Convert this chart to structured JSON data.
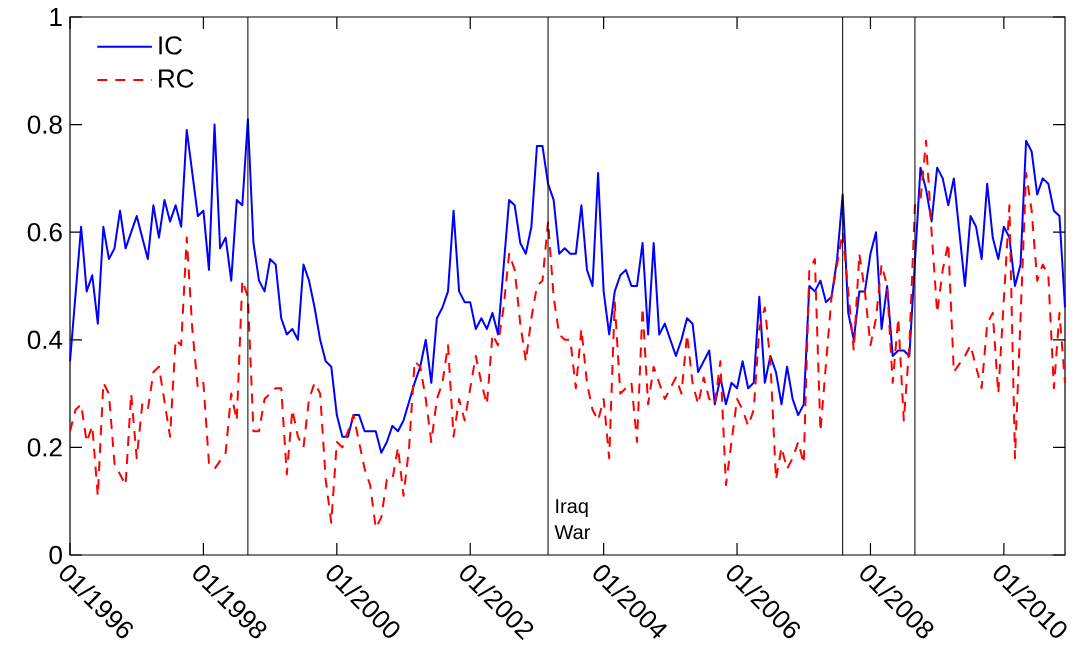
{
  "chart_data": {
    "type": "line",
    "xlim": [
      "1996-01",
      "2010-12"
    ],
    "ylim": [
      0,
      1
    ],
    "xticks": [
      {
        "value": "1996-01",
        "label": "01/1996"
      },
      {
        "value": "1998-01",
        "label": "01/1998"
      },
      {
        "value": "2000-01",
        "label": "01/2000"
      },
      {
        "value": "2002-01",
        "label": "01/2002"
      },
      {
        "value": "2004-01",
        "label": "01/2004"
      },
      {
        "value": "2006-01",
        "label": "01/2006"
      },
      {
        "value": "2008-01",
        "label": "01/2008"
      },
      {
        "value": "2010-01",
        "label": "01/2010"
      }
    ],
    "yticks": [
      0,
      0.2,
      0.4,
      0.6,
      0.8,
      1
    ],
    "legend": "top left",
    "series": [
      {
        "name": "IC",
        "color": "#0000ff",
        "line_style": "solid",
        "x": [
          "1996-01",
          "1996-03",
          "1996-04",
          "1996-05",
          "1996-06",
          "1996-07",
          "1996-08",
          "1996-09",
          "1996-10",
          "1996-11",
          "1997-01",
          "1997-03",
          "1997-04",
          "1997-05",
          "1997-06",
          "1997-07",
          "1997-08",
          "1997-09",
          "1997-10",
          "1997-12",
          "1998-01",
          "1998-02",
          "1998-03",
          "1998-04",
          "1998-05",
          "1998-06",
          "1998-07",
          "1998-08",
          "1998-09",
          "1998-10",
          "1998-11",
          "1998-12",
          "1999-01",
          "1999-02",
          "1999-03",
          "1999-04",
          "1999-05",
          "1999-06",
          "1999-07",
          "1999-08",
          "1999-09",
          "1999-10",
          "1999-11",
          "1999-12",
          "2000-01",
          "2000-02",
          "2000-03",
          "2000-04",
          "2000-05",
          "2000-06",
          "2000-07",
          "2000-08",
          "2000-09",
          "2000-10",
          "2000-11",
          "2000-12",
          "2001-01",
          "2001-03",
          "2001-04",
          "2001-05",
          "2001-06",
          "2001-07",
          "2001-08",
          "2001-09",
          "2001-10",
          "2001-11",
          "2001-12",
          "2002-01",
          "2002-02",
          "2002-03",
          "2002-04",
          "2002-05",
          "2002-06",
          "2002-08",
          "2002-09",
          "2002-10",
          "2002-11",
          "2002-12",
          "2003-01",
          "2003-02",
          "2003-03",
          "2003-04",
          "2003-05",
          "2003-06",
          "2003-07",
          "2003-08",
          "2003-09",
          "2003-10",
          "2003-11",
          "2003-12",
          "2004-01",
          "2004-02",
          "2004-03",
          "2004-04",
          "2004-05",
          "2004-06",
          "2004-07",
          "2004-08",
          "2004-09",
          "2004-10",
          "2004-11",
          "2004-12",
          "2005-01",
          "2005-02",
          "2005-03",
          "2005-04",
          "2005-05",
          "2005-06",
          "2005-07",
          "2005-08",
          "2005-09",
          "2005-10",
          "2005-11",
          "2005-12",
          "2006-01",
          "2006-02",
          "2006-03",
          "2006-04",
          "2006-05",
          "2006-06",
          "2006-07",
          "2006-08",
          "2006-09",
          "2006-10",
          "2006-11",
          "2006-12",
          "2007-01",
          "2007-02",
          "2007-03",
          "2007-04",
          "2007-05",
          "2007-06",
          "2007-07",
          "2007-08",
          "2007-09",
          "2007-10",
          "2007-11",
          "2007-12",
          "2008-01",
          "2008-02",
          "2008-03",
          "2008-04",
          "2008-05",
          "2008-06",
          "2008-07",
          "2008-08",
          "2008-10",
          "2008-11",
          "2008-12",
          "2009-01",
          "2009-02",
          "2009-03",
          "2009-04",
          "2009-05",
          "2009-06",
          "2009-07",
          "2009-08",
          "2009-09",
          "2009-10",
          "2009-11",
          "2009-12",
          "2010-01",
          "2010-02",
          "2010-03",
          "2010-04",
          "2010-05",
          "2010-06",
          "2010-07",
          "2010-08",
          "2010-09",
          "2010-10",
          "2010-11",
          "2010-12"
        ],
        "values": [
          0.36,
          0.61,
          0.49,
          0.52,
          0.43,
          0.61,
          0.55,
          0.57,
          0.64,
          0.57,
          0.63,
          0.55,
          0.65,
          0.59,
          0.66,
          0.62,
          0.65,
          0.61,
          0.79,
          0.63,
          0.64,
          0.53,
          0.8,
          0.57,
          0.59,
          0.51,
          0.66,
          0.65,
          0.81,
          0.58,
          0.51,
          0.49,
          0.55,
          0.54,
          0.44,
          0.41,
          0.42,
          0.4,
          0.54,
          0.51,
          0.46,
          0.4,
          0.36,
          0.35,
          0.26,
          0.22,
          0.22,
          0.26,
          0.26,
          0.23,
          0.23,
          0.23,
          0.19,
          0.21,
          0.24,
          0.23,
          0.25,
          0.32,
          0.35,
          0.4,
          0.32,
          0.44,
          0.46,
          0.49,
          0.64,
          0.49,
          0.47,
          0.47,
          0.42,
          0.44,
          0.42,
          0.45,
          0.41,
          0.66,
          0.65,
          0.58,
          0.56,
          0.61,
          0.76,
          0.76,
          0.69,
          0.66,
          0.56,
          0.57,
          0.56,
          0.56,
          0.65,
          0.53,
          0.5,
          0.71,
          0.49,
          0.41,
          0.49,
          0.52,
          0.53,
          0.5,
          0.5,
          0.58,
          0.41,
          0.58,
          0.41,
          0.43,
          0.4,
          0.37,
          0.4,
          0.44,
          0.43,
          0.34,
          0.36,
          0.38,
          0.28,
          0.33,
          0.28,
          0.32,
          0.31,
          0.36,
          0.31,
          0.32,
          0.48,
          0.32,
          0.37,
          0.34,
          0.28,
          0.35,
          0.29,
          0.26,
          0.28,
          0.5,
          0.49,
          0.51,
          0.47,
          0.48,
          0.55,
          0.67,
          0.45,
          0.4,
          0.49,
          0.49,
          0.56,
          0.6,
          0.42,
          0.5,
          0.37,
          0.38,
          0.38,
          0.37,
          0.72,
          0.68,
          0.62,
          0.72,
          0.7,
          0.65,
          0.7,
          0.6,
          0.5,
          0.63,
          0.61,
          0.55,
          0.69,
          0.59,
          0.55,
          0.61,
          0.59,
          0.5,
          0.54,
          0.77,
          0.75,
          0.67,
          0.7,
          0.69,
          0.64,
          0.63,
          0.46
        ]
      },
      {
        "name": "RC",
        "color": "#ff0000",
        "line_style": "dashed",
        "x": [
          "1996-01",
          "1996-02",
          "1996-03",
          "1996-04",
          "1996-05",
          "1996-06",
          "1996-07",
          "1996-08",
          "1996-09",
          "1996-10",
          "1996-11",
          "1996-12",
          "1997-01",
          "1997-02",
          "1997-03",
          "1997-04",
          "1997-05",
          "1997-07",
          "1997-08",
          "1997-09",
          "1997-10",
          "1997-11",
          "1997-12",
          "1998-01",
          "1998-02",
          "1998-03",
          "1998-05",
          "1998-06",
          "1998-07",
          "1998-08",
          "1998-09",
          "1998-10",
          "1998-11",
          "1998-12",
          "1999-02",
          "1999-03",
          "1999-04",
          "1999-05",
          "1999-06",
          "1999-07",
          "1999-08",
          "1999-09",
          "1999-10",
          "1999-11",
          "1999-12",
          "2000-01",
          "2000-02",
          "2000-04",
          "2000-05",
          "2000-06",
          "2000-07",
          "2000-08",
          "2000-09",
          "2000-10",
          "2000-11",
          "2000-12",
          "2001-01",
          "2001-02",
          "2001-03",
          "2001-04",
          "2001-05",
          "2001-06",
          "2001-07",
          "2001-08",
          "2001-09",
          "2001-10",
          "2001-11",
          "2001-12",
          "2002-01",
          "2002-02",
          "2002-03",
          "2002-04",
          "2002-05",
          "2002-06",
          "2002-07",
          "2002-08",
          "2002-09",
          "2002-10",
          "2002-11",
          "2002-12",
          "2003-01",
          "2003-02",
          "2003-03",
          "2003-04",
          "2003-05",
          "2003-06",
          "2003-07",
          "2003-08",
          "2003-09",
          "2003-10",
          "2003-11",
          "2003-12",
          "2004-01",
          "2004-02",
          "2004-03",
          "2004-04",
          "2004-06",
          "2004-07",
          "2004-08",
          "2004-09",
          "2004-10",
          "2004-12",
          "2005-01",
          "2005-02",
          "2005-03",
          "2005-04",
          "2005-05",
          "2005-06",
          "2005-07",
          "2005-08",
          "2005-09",
          "2005-10",
          "2005-11",
          "2005-12",
          "2006-01",
          "2006-02",
          "2006-03",
          "2006-04",
          "2006-05",
          "2006-06",
          "2006-07",
          "2006-08",
          "2006-09",
          "2006-10",
          "2006-11",
          "2006-12",
          "2007-01",
          "2007-02",
          "2007-03",
          "2007-04",
          "2007-06",
          "2007-07",
          "2007-08",
          "2007-09",
          "2007-10",
          "2007-11",
          "2007-12",
          "2008-01",
          "2008-02",
          "2008-03",
          "2008-04",
          "2008-05",
          "2008-06",
          "2008-07",
          "2008-08",
          "2008-09",
          "2008-10",
          "2008-11",
          "2008-12",
          "2009-01",
          "2009-02",
          "2009-03",
          "2009-04",
          "2009-06",
          "2009-07",
          "2009-09",
          "2009-10",
          "2009-11",
          "2009-12",
          "2010-02",
          "2010-03",
          "2010-04",
          "2010-05",
          "2010-06",
          "2010-07",
          "2010-08",
          "2010-09",
          "2010-10",
          "2010-11",
          "2010-12"
        ],
        "values": [
          0.23,
          0.27,
          0.28,
          0.21,
          0.24,
          0.11,
          0.32,
          0.3,
          0.17,
          0.15,
          0.13,
          0.3,
          0.18,
          0.28,
          0.27,
          0.34,
          0.35,
          0.22,
          0.4,
          0.39,
          0.59,
          0.42,
          0.31,
          0.32,
          0.17,
          0.16,
          0.19,
          0.3,
          0.25,
          0.51,
          0.48,
          0.23,
          0.23,
          0.29,
          0.31,
          0.31,
          0.15,
          0.27,
          0.22,
          0.2,
          0.29,
          0.32,
          0.3,
          0.14,
          0.06,
          0.21,
          0.2,
          0.26,
          0.21,
          0.16,
          0.13,
          0.05,
          0.07,
          0.14,
          0.14,
          0.2,
          0.11,
          0.2,
          0.36,
          0.35,
          0.29,
          0.21,
          0.29,
          0.32,
          0.39,
          0.22,
          0.29,
          0.25,
          0.31,
          0.37,
          0.32,
          0.28,
          0.41,
          0.39,
          0.46,
          0.56,
          0.53,
          0.43,
          0.36,
          0.44,
          0.5,
          0.51,
          0.62,
          0.48,
          0.41,
          0.4,
          0.4,
          0.31,
          0.42,
          0.32,
          0.27,
          0.25,
          0.29,
          0.18,
          0.47,
          0.3,
          0.32,
          0.21,
          0.46,
          0.28,
          0.35,
          0.29,
          0.31,
          0.33,
          0.3,
          0.41,
          0.32,
          0.28,
          0.33,
          0.29,
          0.28,
          0.36,
          0.13,
          0.21,
          0.29,
          0.27,
          0.24,
          0.27,
          0.42,
          0.46,
          0.36,
          0.14,
          0.2,
          0.16,
          0.18,
          0.21,
          0.17,
          0.53,
          0.55,
          0.23,
          0.48,
          0.54,
          0.6,
          0.49,
          0.38,
          0.56,
          0.49,
          0.39,
          0.44,
          0.54,
          0.5,
          0.32,
          0.44,
          0.25,
          0.39,
          0.65,
          0.66,
          0.77,
          0.6,
          0.45,
          0.53,
          0.58,
          0.34,
          0.37,
          0.39,
          0.31,
          0.43,
          0.45,
          0.3,
          0.65,
          0.18,
          0.44,
          0.71,
          0.64,
          0.51,
          0.54,
          0.52,
          0.31,
          0.45,
          0.32
        ]
      }
    ],
    "ref_lines": [
      {
        "axis": "x",
        "value": "1998-09",
        "color": "#000000"
      },
      {
        "axis": "x",
        "value": "2003-03",
        "label": "Iraq War",
        "color": "#000000"
      },
      {
        "axis": "x",
        "value": "2007-08",
        "color": "#000000"
      },
      {
        "axis": "x",
        "value": "2008-09",
        "color": "#000000"
      }
    ]
  }
}
